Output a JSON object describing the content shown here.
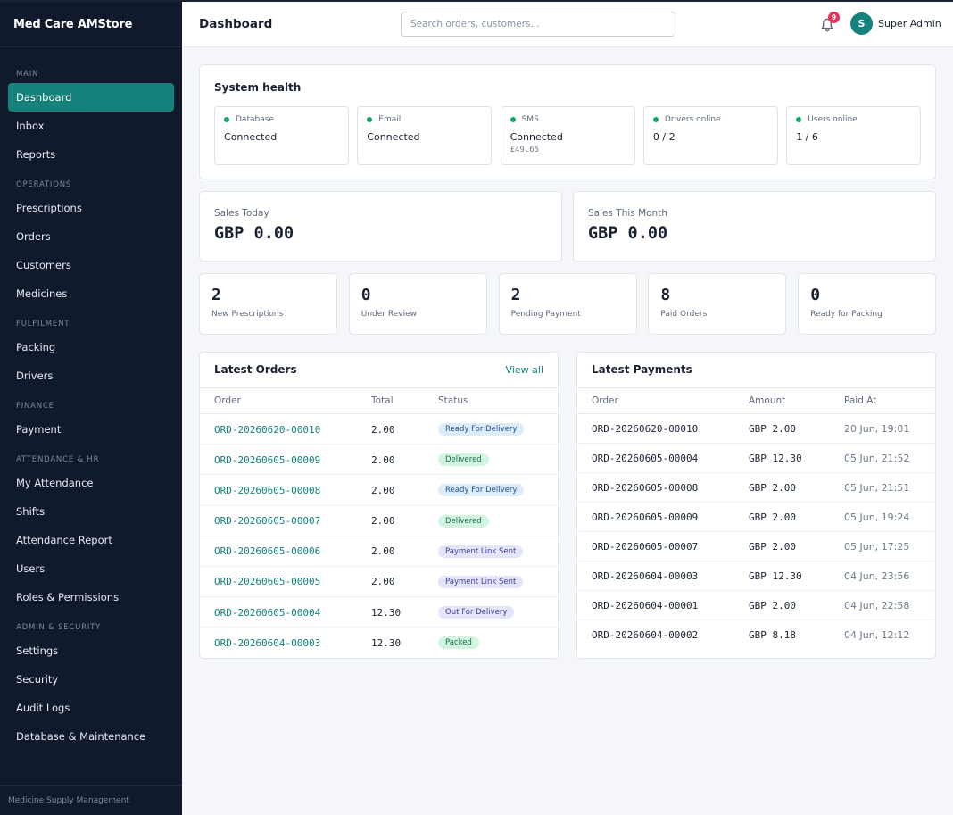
{
  "app": {
    "title": "Med Care AMStore",
    "footer": "Medicine Supply Management"
  },
  "sidebar": {
    "sections": [
      {
        "label": "MAIN",
        "items": [
          {
            "label": "Dashboard",
            "active": true
          },
          {
            "label": "Inbox"
          },
          {
            "label": "Reports"
          }
        ]
      },
      {
        "label": "OPERATIONS",
        "items": [
          {
            "label": "Prescriptions"
          },
          {
            "label": "Orders"
          },
          {
            "label": "Customers"
          },
          {
            "label": "Medicines"
          }
        ]
      },
      {
        "label": "FULFILMENT",
        "items": [
          {
            "label": "Packing"
          },
          {
            "label": "Drivers"
          }
        ]
      },
      {
        "label": "FINANCE",
        "items": [
          {
            "label": "Payment"
          }
        ]
      },
      {
        "label": "ATTENDANCE & HR",
        "items": [
          {
            "label": "My Attendance"
          },
          {
            "label": "Shifts"
          },
          {
            "label": "Attendance Report"
          },
          {
            "label": "Users"
          },
          {
            "label": "Roles & Permissions"
          }
        ]
      },
      {
        "label": "ADMIN & SECURITY",
        "items": [
          {
            "label": "Settings"
          },
          {
            "label": "Security"
          },
          {
            "label": "Audit Logs"
          },
          {
            "label": "Database & Maintenance"
          }
        ]
      }
    ]
  },
  "header": {
    "title": "Dashboard",
    "search_placeholder": "Search orders, customers...",
    "notification_count": "9",
    "user_initial": "S",
    "user_name": "Super Admin"
  },
  "health": {
    "title": "System health",
    "items": [
      {
        "label": "Database",
        "value": "Connected",
        "sub": ""
      },
      {
        "label": "Email",
        "value": "Connected",
        "sub": ""
      },
      {
        "label": "SMS",
        "value": "Connected",
        "sub": "£49.65"
      },
      {
        "label": "Drivers online",
        "value": "0 / 2",
        "sub": ""
      },
      {
        "label": "Users online",
        "value": "1 / 6",
        "sub": ""
      }
    ],
    "status_color": "#16a364"
  },
  "sales": [
    {
      "label": "Sales Today",
      "value": "GBP 0.00"
    },
    {
      "label": "Sales This Month",
      "value": "GBP 0.00"
    }
  ],
  "stats": [
    {
      "value": "2",
      "label": "New Prescriptions"
    },
    {
      "value": "0",
      "label": "Under Review"
    },
    {
      "value": "2",
      "label": "Pending Payment"
    },
    {
      "value": "8",
      "label": "Paid Orders"
    },
    {
      "value": "0",
      "label": "Ready for Packing"
    }
  ],
  "latest_orders": {
    "title": "Latest Orders",
    "view_all": "View all",
    "columns": [
      "Order",
      "Total",
      "Status"
    ],
    "rows": [
      {
        "order": "ORD-20260620-00010",
        "total": "2.00",
        "status": "Ready For Delivery",
        "tone": "blue"
      },
      {
        "order": "ORD-20260605-00009",
        "total": "2.00",
        "status": "Delivered",
        "tone": "green"
      },
      {
        "order": "ORD-20260605-00008",
        "total": "2.00",
        "status": "Ready For Delivery",
        "tone": "blue"
      },
      {
        "order": "ORD-20260605-00007",
        "total": "2.00",
        "status": "Delivered",
        "tone": "green"
      },
      {
        "order": "ORD-20260605-00006",
        "total": "2.00",
        "status": "Payment Link Sent",
        "tone": "purple"
      },
      {
        "order": "ORD-20260605-00005",
        "total": "2.00",
        "status": "Payment Link Sent",
        "tone": "purple"
      },
      {
        "order": "ORD-20260605-00004",
        "total": "12.30",
        "status": "Out For Delivery",
        "tone": "purple"
      },
      {
        "order": "ORD-20260604-00003",
        "total": "12.30",
        "status": "Packed",
        "tone": "green"
      }
    ]
  },
  "latest_payments": {
    "title": "Latest Payments",
    "columns": [
      "Order",
      "Amount",
      "Paid At"
    ],
    "rows": [
      {
        "order": "ORD-20260620-00010",
        "amount": "GBP 2.00",
        "paid_at": "20 Jun, 19:01"
      },
      {
        "order": "ORD-20260605-00004",
        "amount": "GBP 12.30",
        "paid_at": "05 Jun, 21:52"
      },
      {
        "order": "ORD-20260605-00008",
        "amount": "GBP 2.00",
        "paid_at": "05 Jun, 21:51"
      },
      {
        "order": "ORD-20260605-00009",
        "amount": "GBP 2.00",
        "paid_at": "05 Jun, 19:24"
      },
      {
        "order": "ORD-20260605-00007",
        "amount": "GBP 2.00",
        "paid_at": "05 Jun, 17:25"
      },
      {
        "order": "ORD-20260604-00003",
        "amount": "GBP 12.30",
        "paid_at": "04 Jun, 23:56"
      },
      {
        "order": "ORD-20260604-00001",
        "amount": "GBP 2.00",
        "paid_at": "04 Jun, 22:58"
      },
      {
        "order": "ORD-20260604-00002",
        "amount": "GBP 8.18",
        "paid_at": "04 Jun, 12:12"
      }
    ]
  },
  "colors": {
    "accent": "#12827a",
    "sidebar": "#101a2c",
    "badge_alert": "#e5345a"
  }
}
